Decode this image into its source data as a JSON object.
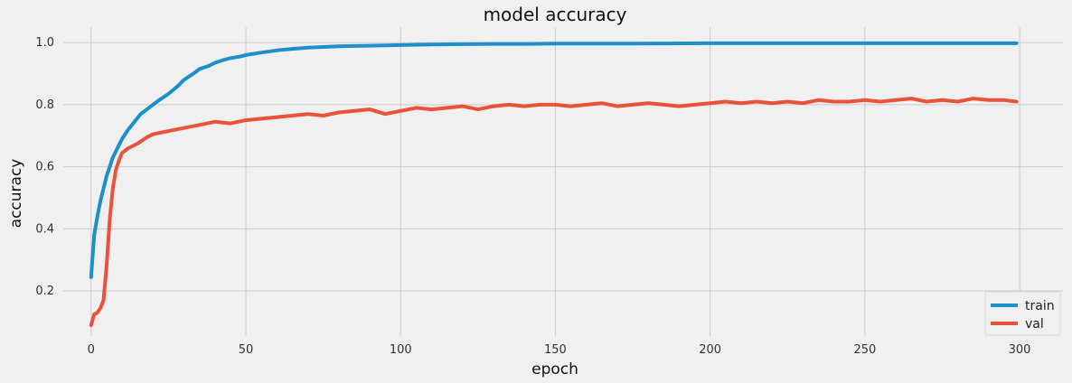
{
  "chart_data": {
    "type": "line",
    "title": "model accuracy",
    "xlabel": "epoch",
    "ylabel": "accuracy",
    "xlim": [
      -9,
      314
    ],
    "ylim": [
      0.055,
      1.05
    ],
    "xticks": [
      0,
      50,
      100,
      150,
      200,
      250,
      300
    ],
    "yticks": [
      0.2,
      0.4,
      0.6,
      0.8,
      1.0
    ],
    "xtick_labels": [
      "0",
      "50",
      "100",
      "150",
      "200",
      "250",
      "300"
    ],
    "ytick_labels": [
      "0.2",
      "0.4",
      "0.6",
      "0.8",
      "1.0"
    ],
    "grid": true,
    "legend_position": "lower-right",
    "series": [
      {
        "name": "train",
        "color": "#1f8fc9",
        "x": [
          0,
          1,
          2,
          3,
          4,
          5,
          6,
          7,
          8,
          9,
          10,
          12,
          14,
          16,
          18,
          20,
          22,
          25,
          28,
          30,
          33,
          35,
          38,
          40,
          43,
          45,
          48,
          50,
          55,
          60,
          65,
          70,
          75,
          80,
          90,
          100,
          110,
          120,
          130,
          140,
          150,
          175,
          200,
          225,
          250,
          275,
          299
        ],
        "y": [
          0.245,
          0.38,
          0.44,
          0.49,
          0.53,
          0.57,
          0.6,
          0.63,
          0.65,
          0.67,
          0.69,
          0.72,
          0.745,
          0.77,
          0.785,
          0.8,
          0.815,
          0.835,
          0.86,
          0.88,
          0.9,
          0.915,
          0.925,
          0.935,
          0.945,
          0.95,
          0.955,
          0.96,
          0.968,
          0.975,
          0.98,
          0.984,
          0.986,
          0.988,
          0.99,
          0.992,
          0.994,
          0.995,
          0.996,
          0.996,
          0.997,
          0.997,
          0.998,
          0.998,
          0.998,
          0.998,
          0.998
        ]
      },
      {
        "name": "val",
        "color": "#e8533a",
        "x": [
          0,
          1,
          2,
          3,
          4,
          5,
          6,
          7,
          8,
          9,
          10,
          12,
          15,
          18,
          20,
          25,
          30,
          35,
          40,
          45,
          50,
          55,
          60,
          65,
          70,
          75,
          80,
          85,
          90,
          95,
          100,
          105,
          110,
          115,
          120,
          125,
          130,
          135,
          140,
          145,
          150,
          155,
          160,
          165,
          170,
          175,
          180,
          185,
          190,
          195,
          200,
          205,
          210,
          215,
          220,
          225,
          230,
          235,
          240,
          245,
          250,
          255,
          260,
          265,
          270,
          275,
          280,
          285,
          290,
          295,
          299
        ],
        "y": [
          0.09,
          0.125,
          0.13,
          0.145,
          0.17,
          0.28,
          0.43,
          0.53,
          0.59,
          0.62,
          0.645,
          0.66,
          0.675,
          0.695,
          0.705,
          0.715,
          0.725,
          0.735,
          0.745,
          0.74,
          0.75,
          0.755,
          0.76,
          0.765,
          0.77,
          0.765,
          0.775,
          0.78,
          0.785,
          0.77,
          0.78,
          0.79,
          0.785,
          0.79,
          0.795,
          0.785,
          0.795,
          0.8,
          0.795,
          0.8,
          0.8,
          0.795,
          0.8,
          0.805,
          0.795,
          0.8,
          0.805,
          0.8,
          0.795,
          0.8,
          0.805,
          0.81,
          0.805,
          0.81,
          0.805,
          0.81,
          0.805,
          0.815,
          0.81,
          0.81,
          0.815,
          0.81,
          0.815,
          0.82,
          0.81,
          0.815,
          0.81,
          0.82,
          0.815,
          0.815,
          0.81
        ]
      }
    ]
  }
}
